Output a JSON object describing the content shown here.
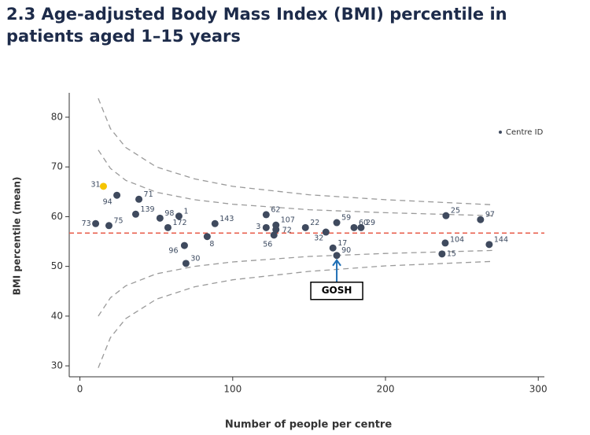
{
  "chart_data": {
    "type": "scatter",
    "title": "2.3 Age-adjusted Body Mass Index (BMI) percentile in patients aged 1–15 years",
    "xlabel": "Number of people per centre",
    "ylabel": "BMI percentile (mean)",
    "legend": "Centre ID",
    "xlim": [
      -7,
      304
    ],
    "ylim": [
      27.8,
      84.9
    ],
    "xticks": [
      0,
      100,
      200,
      300
    ],
    "yticks": [
      30,
      40,
      50,
      60,
      70,
      80
    ],
    "points": {
      "labels": [
        "31",
        "94",
        "71",
        "139",
        "98",
        "1",
        "73",
        "75",
        "172",
        "143",
        "8",
        "96",
        "30",
        "62",
        "107",
        "3",
        "72",
        "56",
        "22",
        "32",
        "59",
        "60",
        "29",
        "17",
        "90",
        "25",
        "97",
        "104",
        "15",
        "144"
      ],
      "x": [
        15.4,
        24.2,
        38.6,
        36.5,
        52.4,
        64.8,
        10.3,
        19,
        57.6,
        88.4,
        83.3,
        68.4,
        69.4,
        121.9,
        128.3,
        121.9,
        128.3,
        127,
        147.6,
        161,
        168.1,
        179.4,
        184,
        165.6,
        168.1,
        239.6,
        262.2,
        239.1,
        237,
        267.9
      ],
      "y": [
        66.1,
        64.3,
        63.5,
        60.5,
        59.7,
        60.1,
        58.6,
        58.2,
        57.8,
        58.6,
        56,
        54.2,
        50.6,
        60.4,
        58.3,
        57.8,
        57.4,
        56.3,
        57.8,
        56.9,
        58.8,
        57.8,
        57.8,
        53.7,
        52.2,
        60.2,
        59.4,
        54.7,
        52.5,
        54.4
      ],
      "colors": [
        "#f5c400",
        "#3f4a5e",
        "#3f4a5e",
        "#3f4a5e",
        "#3f4a5e",
        "#3f4a5e",
        "#3f4a5e",
        "#3f4a5e",
        "#3f4a5e",
        "#3f4a5e",
        "#3f4a5e",
        "#3f4a5e",
        "#3f4a5e",
        "#3f4a5e",
        "#3f4a5e",
        "#3f4a5e",
        "#3f4a5e",
        "#3f4a5e",
        "#3f4a5e",
        "#3f4a5e",
        "#3f4a5e",
        "#3f4a5e",
        "#3f4a5e",
        "#3f4a5e",
        "#3f4a5e",
        "#3f4a5e",
        "#3f4a5e",
        "#3f4a5e",
        "#3f4a5e",
        "#3f4a5e"
      ]
    },
    "reference_line": {
      "y": 56.7,
      "color": "#e8604f"
    },
    "funnel_color": "#9a9a9a",
    "funnel_x": [
      12,
      20,
      30,
      50,
      75,
      100,
      150,
      200,
      270
    ],
    "funnels": [
      {
        "y": [
          73.4,
          69.7,
          67.3,
          64.9,
          63.4,
          62.5,
          61.4,
          60.8,
          60.2
        ]
      },
      {
        "y": [
          40.0,
          43.7,
          46.1,
          48.5,
          50.0,
          50.9,
          52.0,
          52.6,
          53.2
        ]
      },
      {
        "y": [
          83.8,
          77.7,
          73.9,
          70.0,
          67.6,
          66.1,
          64.4,
          63.4,
          62.4
        ]
      },
      {
        "y": [
          29.6,
          35.7,
          39.5,
          43.4,
          45.9,
          47.3,
          49.0,
          50.1,
          51.0
        ]
      }
    ],
    "annotation": {
      "text": "GOSH",
      "x": 168.1,
      "y": 52.2,
      "color": "#1f6fb5"
    }
  }
}
